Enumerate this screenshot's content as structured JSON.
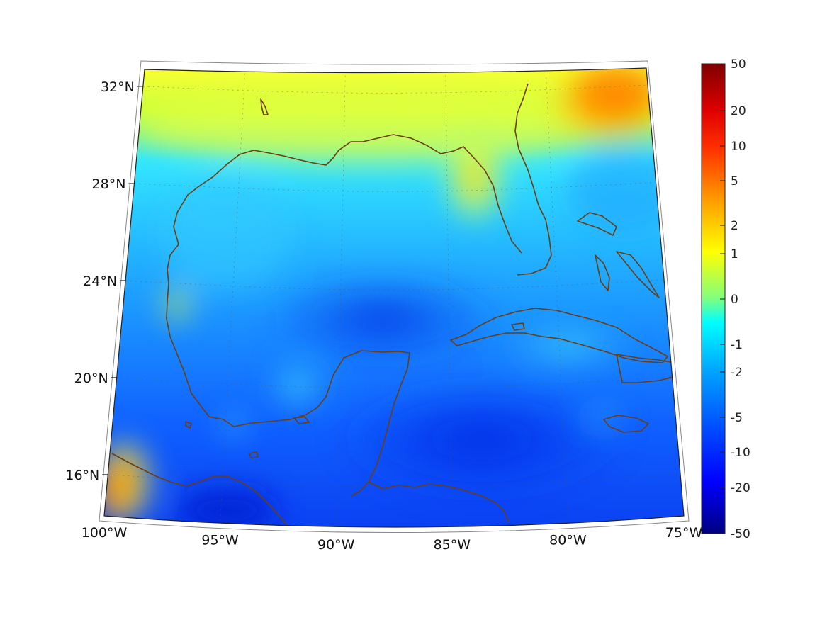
{
  "map": {
    "region": "Gulf of Mexico",
    "lon_ticks": [
      "100°W",
      "95°W",
      "90°W",
      "85°W",
      "80°W",
      "75°W"
    ],
    "lat_ticks": [
      "32°N",
      "28°N",
      "24°N",
      "20°N",
      "16°N"
    ],
    "lon_values": [
      -100,
      -95,
      -90,
      -85,
      -80,
      -75
    ],
    "lat_values": [
      32,
      28,
      24,
      20,
      16
    ],
    "extent": {
      "lon": [
        -100,
        -75
      ],
      "lat": [
        14.3,
        32.7
      ]
    },
    "grid": true
  },
  "colorbar": {
    "tick_labels": [
      "50",
      "20",
      "10",
      "5",
      "2",
      "1",
      "0",
      "-1",
      "-2",
      "-5",
      "-10",
      "-20",
      "-50"
    ],
    "colormap": "jet",
    "colors": [
      "#00007f",
      "#0000ff",
      "#007fff",
      "#00ffff",
      "#7fff7f",
      "#ffff00",
      "#ff7f00",
      "#ff0000",
      "#7f0000"
    ]
  }
}
